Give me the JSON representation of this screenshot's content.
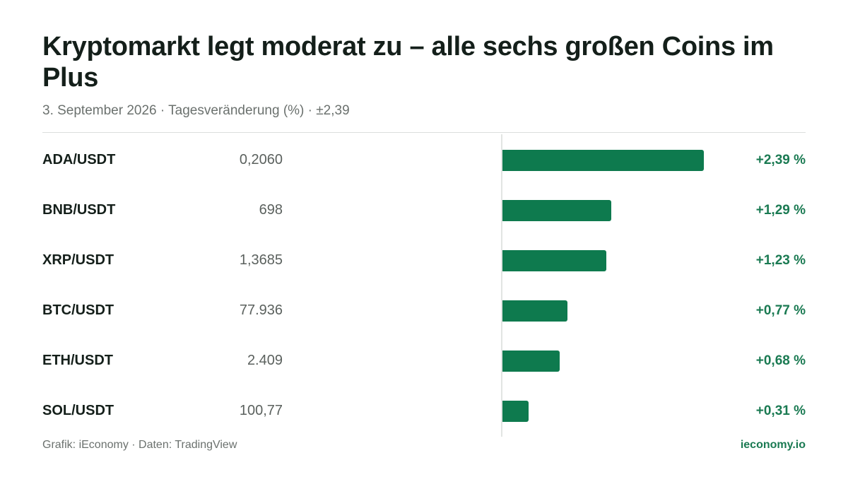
{
  "header": {
    "title": "Kryptomarkt legt moderat zu – alle sechs großen Coins im Plus",
    "subtitle": "3. September 2026 · Tagesveränderung (%) · ±2,39"
  },
  "footer": {
    "source": "Grafik: iEconomy · Daten: TradingView",
    "brand": "ieconomy.io"
  },
  "colors": {
    "bar": "#0e7a4e",
    "positive_text": "#1a7a52"
  },
  "chart_data": {
    "type": "bar",
    "orientation": "horizontal",
    "title": "Kryptomarkt legt moderat zu – alle sechs großen Coins im Plus",
    "subtitle": "3. September 2026 · Tagesveränderung (%) · ±2,39",
    "xlim": [
      -2.39,
      2.39
    ],
    "grid": false,
    "rows": [
      {
        "pair": "ADA/USDT",
        "price": "0,2060",
        "change": 2.39,
        "change_label": "+2,39 %"
      },
      {
        "pair": "BNB/USDT",
        "price": "698",
        "change": 1.29,
        "change_label": "+1,29 %"
      },
      {
        "pair": "XRP/USDT",
        "price": "1,3685",
        "change": 1.23,
        "change_label": "+1,23 %"
      },
      {
        "pair": "BTC/USDT",
        "price": "77.936",
        "change": 0.77,
        "change_label": "+0,77 %"
      },
      {
        "pair": "ETH/USDT",
        "price": "2.409",
        "change": 0.68,
        "change_label": "+0,68 %"
      },
      {
        "pair": "SOL/USDT",
        "price": "100,77",
        "change": 0.31,
        "change_label": "+0,31 %"
      }
    ]
  }
}
